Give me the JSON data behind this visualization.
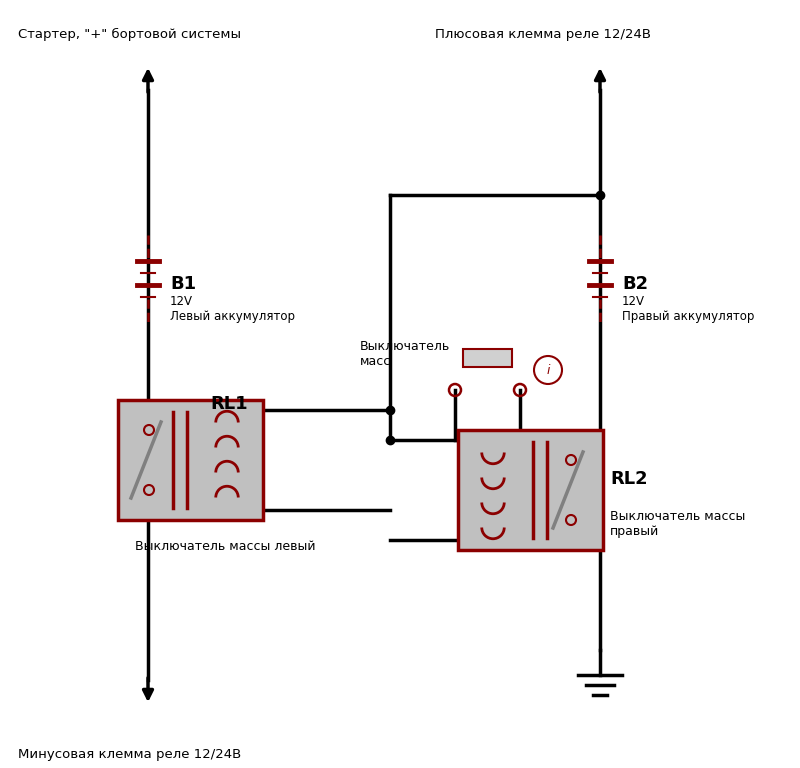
{
  "bg_color": "#ffffff",
  "line_color": "#000000",
  "dark_red": "#8b0000",
  "relay_fill": "#c0c0c0",
  "relay_border": "#8b0000",
  "title_top_left": "Стартер, \"+\" бортовой системы",
  "title_top_right": "Плюсовая клемма реле 12/24В",
  "title_bot_left": "Минусовая клемма реле 12/24В",
  "label_b1": "B1",
  "label_b1_sub": "12V\nЛевый аккумулятор",
  "label_b2": "B2",
  "label_b2_sub": "12V\nПравый аккумулятор",
  "label_rl1": "RL1",
  "label_rl1_sub": "Выключатель массы левый",
  "label_rl2": "RL2",
  "label_rl2_sub": "Выключатель массы\nправый",
  "label_switch": "Выключатель\nмасс"
}
